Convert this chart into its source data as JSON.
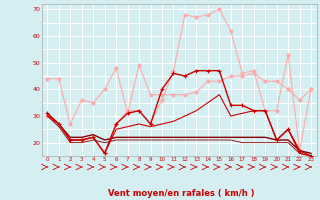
{
  "background_color": "#d4eef1",
  "grid_color": "#ffffff",
  "xlabel": "Vent moyen/en rafales ( km/h )",
  "xlabel_color": "#cc0000",
  "xlabel_fontsize": 6,
  "ytick_labels": [
    "",
    "20",
    "",
    "30",
    "",
    "40",
    "",
    "50",
    "",
    "60",
    "",
    "70"
  ],
  "yticks": [
    15,
    20,
    25,
    30,
    35,
    40,
    45,
    50,
    55,
    60,
    65,
    70
  ],
  "xticks": [
    0,
    1,
    2,
    3,
    4,
    5,
    6,
    7,
    8,
    9,
    10,
    11,
    12,
    13,
    14,
    15,
    16,
    17,
    18,
    19,
    20,
    21,
    22,
    23
  ],
  "x": [
    0,
    1,
    2,
    3,
    4,
    5,
    6,
    7,
    8,
    9,
    10,
    11,
    12,
    13,
    14,
    15,
    16,
    17,
    18,
    19,
    20,
    21,
    22,
    23
  ],
  "lines": [
    {
      "y": [
        44,
        44,
        27,
        36,
        35,
        40,
        48,
        31,
        49,
        38,
        38,
        38,
        38,
        39,
        43,
        43,
        45,
        45,
        46,
        43,
        43,
        40,
        36,
        40
      ],
      "color": "#ffaaaa",
      "lw": 0.8,
      "marker": "D",
      "ms": 1.8,
      "zorder": 2
    },
    {
      "y": [
        30,
        27,
        21,
        21,
        22,
        16,
        27,
        32,
        32,
        27,
        36,
        47,
        68,
        67,
        68,
        70,
        62,
        46,
        47,
        32,
        32,
        53,
        17,
        40
      ],
      "color": "#ffaaaa",
      "lw": 0.8,
      "marker": "D",
      "ms": 1.8,
      "zorder": 2
    },
    {
      "y": [
        31,
        27,
        21,
        21,
        22,
        16,
        27,
        31,
        32,
        27,
        40,
        46,
        45,
        47,
        47,
        47,
        34,
        34,
        32,
        32,
        21,
        25,
        17,
        15
      ],
      "color": "#cc0000",
      "lw": 1.0,
      "marker": "+",
      "ms": 3,
      "zorder": 3
    },
    {
      "y": [
        30,
        27,
        21,
        21,
        22,
        16,
        25,
        26,
        27,
        26,
        27,
        28,
        30,
        32,
        35,
        38,
        30,
        31,
        32,
        32,
        21,
        25,
        16,
        15
      ],
      "color": "#cc0000",
      "lw": 0.8,
      "marker": null,
      "ms": 0,
      "zorder": 3
    },
    {
      "y": [
        31,
        27,
        22,
        22,
        23,
        21,
        22,
        22,
        22,
        22,
        22,
        22,
        22,
        22,
        22,
        22,
        22,
        22,
        22,
        22,
        21,
        21,
        17,
        16
      ],
      "color": "#880000",
      "lw": 1.0,
      "marker": null,
      "ms": 0,
      "zorder": 2
    },
    {
      "y": [
        30,
        26,
        20,
        20,
        21,
        20,
        21,
        21,
        21,
        21,
        21,
        21,
        21,
        21,
        21,
        21,
        21,
        20,
        20,
        20,
        20,
        20,
        16,
        15
      ],
      "color": "#880000",
      "lw": 0.6,
      "marker": null,
      "ms": 0,
      "zorder": 2
    }
  ],
  "ylim": [
    15,
    72
  ],
  "xlim": [
    -0.5,
    23.5
  ]
}
